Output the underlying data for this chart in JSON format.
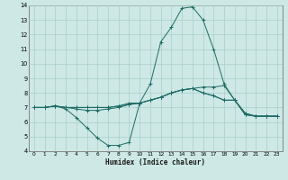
{
  "xlabel": "Humidex (Indice chaleur)",
  "xlim": [
    -0.5,
    23.5
  ],
  "ylim": [
    4,
    14
  ],
  "xticks": [
    0,
    1,
    2,
    3,
    4,
    5,
    6,
    7,
    8,
    9,
    10,
    11,
    12,
    13,
    14,
    15,
    16,
    17,
    18,
    19,
    20,
    21,
    22,
    23
  ],
  "yticks": [
    4,
    5,
    6,
    7,
    8,
    9,
    10,
    11,
    12,
    13,
    14
  ],
  "bg_color": "#cde8e5",
  "line_color": "#1e6b65",
  "grid_color": "#aacfcc",
  "lines": [
    {
      "x": [
        0,
        1,
        2,
        3,
        4,
        5,
        6,
        7,
        8,
        9,
        10,
        11,
        12,
        13,
        14,
        15,
        16,
        17,
        18,
        19,
        20,
        21,
        22,
        23
      ],
      "y": [
        7.0,
        7.0,
        7.1,
        6.9,
        6.3,
        5.6,
        4.9,
        4.4,
        4.4,
        4.6,
        7.3,
        8.6,
        11.5,
        12.5,
        13.8,
        13.9,
        13.0,
        11.0,
        8.6,
        7.5,
        6.5,
        6.4,
        6.4,
        6.4
      ]
    },
    {
      "x": [
        0,
        1,
        2,
        3,
        4,
        5,
        6,
        7,
        8,
        9,
        10,
        11,
        12,
        13,
        14,
        15,
        16,
        17,
        18,
        19,
        20,
        21,
        22,
        23
      ],
      "y": [
        7.0,
        7.0,
        7.1,
        7.0,
        6.9,
        6.8,
        6.8,
        6.9,
        7.0,
        7.2,
        7.3,
        7.5,
        7.7,
        8.0,
        8.2,
        8.3,
        8.4,
        8.4,
        8.5,
        7.5,
        6.5,
        6.4,
        6.4,
        6.4
      ]
    },
    {
      "x": [
        0,
        1,
        2,
        3,
        4,
        5,
        6,
        7,
        8,
        9,
        10,
        11,
        12,
        13,
        14,
        15,
        16,
        17,
        18,
        19,
        20,
        21,
        22,
        23
      ],
      "y": [
        7.0,
        7.0,
        7.1,
        7.0,
        7.0,
        7.0,
        7.0,
        7.0,
        7.1,
        7.2,
        7.3,
        7.5,
        7.7,
        8.0,
        8.2,
        8.3,
        8.0,
        7.8,
        7.5,
        7.5,
        6.6,
        6.4,
        6.4,
        6.4
      ]
    },
    {
      "x": [
        0,
        1,
        2,
        3,
        4,
        5,
        6,
        7,
        8,
        9,
        10,
        11,
        12,
        13,
        14,
        15,
        16,
        17,
        18,
        19,
        20,
        21,
        22,
        23
      ],
      "y": [
        7.0,
        7.0,
        7.1,
        7.0,
        7.0,
        7.0,
        7.0,
        7.0,
        7.1,
        7.3,
        7.3,
        7.5,
        7.7,
        8.0,
        8.2,
        8.3,
        8.0,
        7.8,
        7.5,
        7.5,
        6.6,
        6.4,
        6.4,
        6.4
      ]
    }
  ]
}
